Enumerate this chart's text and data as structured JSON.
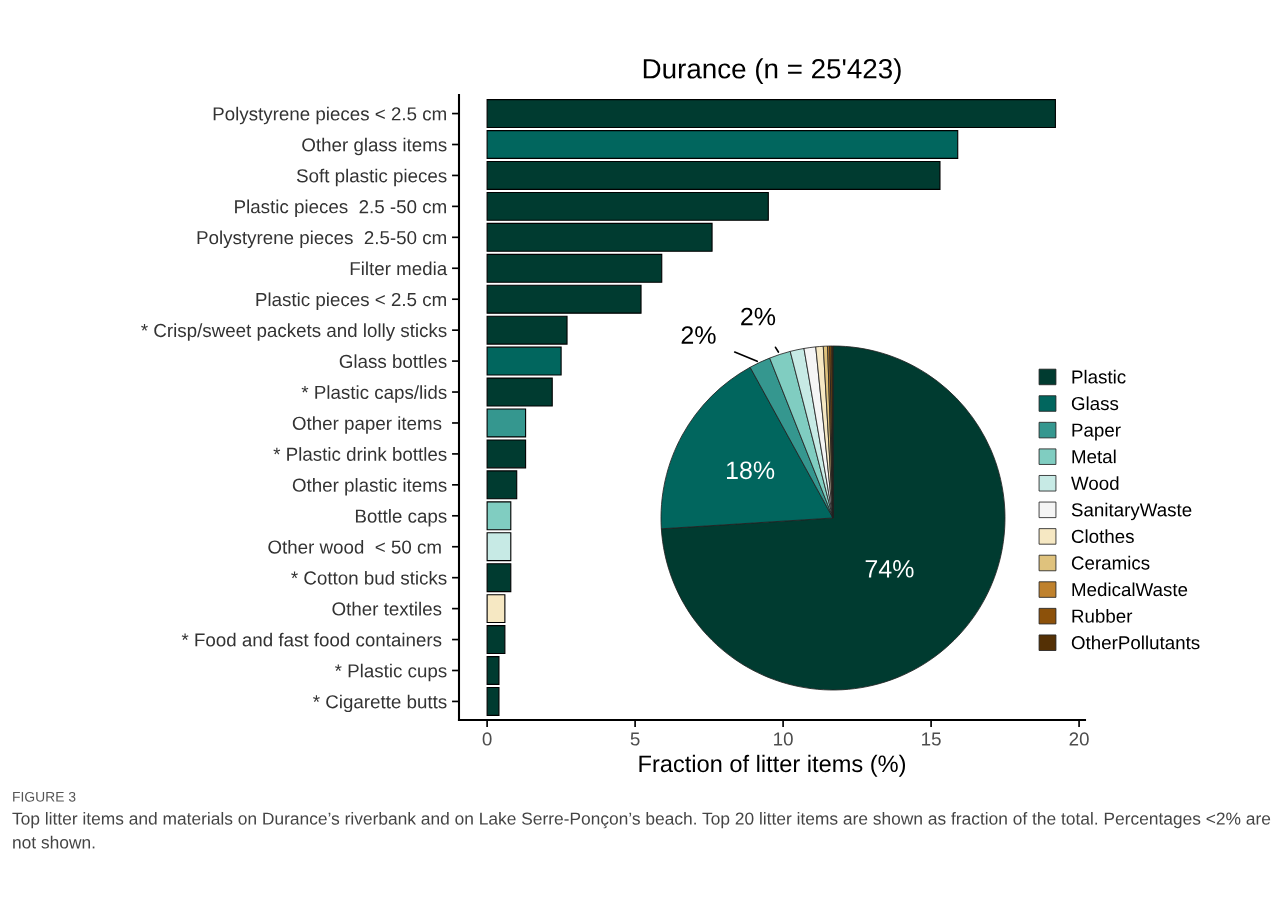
{
  "chart_data": [
    {
      "type": "bar",
      "orientation": "horizontal",
      "title": "Durance (n = 25'423)",
      "xlabel": "Fraction of litter items (%)",
      "categories": [
        "Polystyrene pieces < 2.5 cm",
        "Other glass items",
        "Soft plastic pieces",
        "Plastic pieces  2.5 -50 cm",
        "Polystyrene pieces  2.5-50 cm",
        "Filter media",
        "Plastic pieces < 2.5 cm",
        "* Crisp/sweet packets and lolly sticks",
        "Glass bottles",
        "* Plastic caps/lids",
        "Other paper items ",
        "* Plastic drink bottles",
        "Other plastic items",
        "Bottle caps",
        "Other wood  < 50 cm ",
        "* Cotton bud sticks",
        "Other textiles ",
        "* Food and fast food containers ",
        "* Plastic cups",
        "* Cigarette butts"
      ],
      "values": [
        19.2,
        15.9,
        15.3,
        9.5,
        7.6,
        5.9,
        5.2,
        2.7,
        2.5,
        2.2,
        1.3,
        1.3,
        1.0,
        0.8,
        0.8,
        0.8,
        0.6,
        0.6,
        0.4,
        0.4
      ],
      "colors": [
        "#003b30",
        "#01665e",
        "#003b30",
        "#003b30",
        "#003b30",
        "#003b30",
        "#003b30",
        "#003b30",
        "#01665e",
        "#003b30",
        "#35978f",
        "#003b30",
        "#003b30",
        "#80cdc1",
        "#c7eae5",
        "#003b30",
        "#f6e8c3",
        "#003b30",
        "#003b30",
        "#003b30"
      ],
      "xlim": [
        -0.95,
        20.2
      ],
      "xticks": [
        0,
        5,
        10,
        15,
        20
      ],
      "grid": false,
      "annotations": [
        "FIGURE 3",
        "Top litter items and materials on Durance’s riverbank and on Lake Serre-Ponçon’s beach. Top 20 litter items are shown as fraction of the total. Percentages <2% are not shown."
      ]
    },
    {
      "type": "pie",
      "categories": [
        "Plastic",
        "Glass",
        "Paper",
        "Metal",
        "Wood",
        "SanitaryWaste",
        "Clothes",
        "Ceramics",
        "MedicalWaste",
        "Rubber",
        "OtherPollutants"
      ],
      "values": [
        74,
        18,
        2,
        2,
        1.3,
        1.1,
        0.7,
        0.4,
        0.2,
        0.2,
        0.1
      ],
      "colors": [
        "#003b30",
        "#01665e",
        "#35978f",
        "#80cdc1",
        "#c7eae5",
        "#f5f5f5",
        "#f6e8c3",
        "#dfc27d",
        "#bf812d",
        "#8c510a",
        "#543005"
      ],
      "value_labels": [
        "74%",
        "18%",
        "2%",
        "2%",
        null,
        null,
        null,
        null,
        null,
        null,
        null
      ],
      "legend": "right"
    }
  ]
}
